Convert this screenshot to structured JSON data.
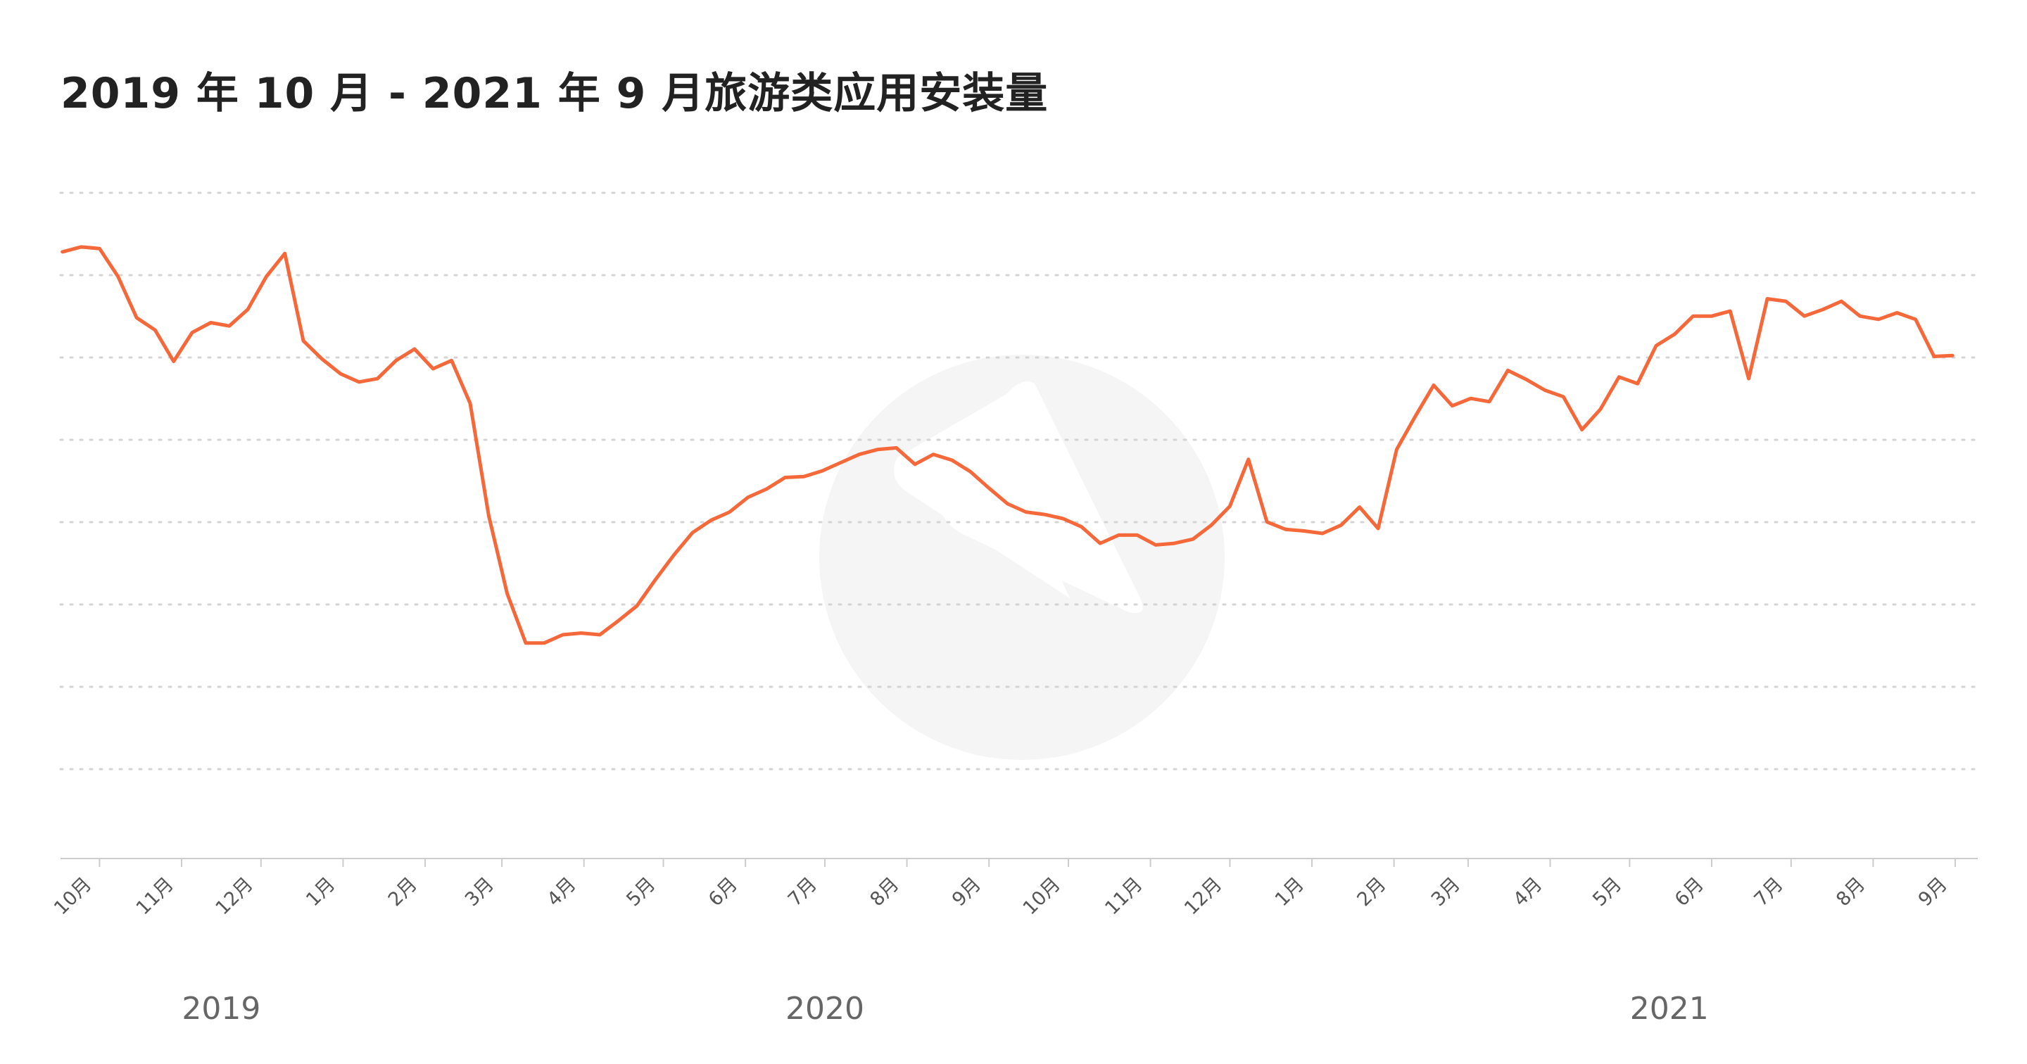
{
  "chart_data": {
    "type": "line",
    "title": "2019 年 10 月 - 2021 年 9 月旅游类应用安装量",
    "xlabel": "",
    "ylabel": "",
    "ylim": [
      0,
      8
    ],
    "grid": true,
    "legend": "none",
    "x_ticks": [
      {
        "label": "10月",
        "date": "2019-10-01"
      },
      {
        "label": "11月",
        "date": "2019-11-01"
      },
      {
        "label": "12月",
        "date": "2019-12-01"
      },
      {
        "label": "1月",
        "date": "2020-01-01"
      },
      {
        "label": "2月",
        "date": "2020-02-01"
      },
      {
        "label": "3月",
        "date": "2020-03-01"
      },
      {
        "label": "4月",
        "date": "2020-04-01"
      },
      {
        "label": "5月",
        "date": "2020-05-01"
      },
      {
        "label": "6月",
        "date": "2020-06-01"
      },
      {
        "label": "7月",
        "date": "2020-07-01"
      },
      {
        "label": "8月",
        "date": "2020-08-01"
      },
      {
        "label": "9月",
        "date": "2020-09-01"
      },
      {
        "label": "10月",
        "date": "2020-10-01"
      },
      {
        "label": "11月",
        "date": "2020-11-01"
      },
      {
        "label": "12月",
        "date": "2020-12-01"
      },
      {
        "label": "1月",
        "date": "2021-01-01"
      },
      {
        "label": "2月",
        "date": "2021-02-01"
      },
      {
        "label": "3月",
        "date": "2021-03-01"
      },
      {
        "label": "4月",
        "date": "2021-04-01"
      },
      {
        "label": "5月",
        "date": "2021-05-01"
      },
      {
        "label": "6月",
        "date": "2021-06-01"
      },
      {
        "label": "7月",
        "date": "2021-07-01"
      },
      {
        "label": "8月",
        "date": "2021-08-01"
      },
      {
        "label": "9月",
        "date": "2021-09-01"
      }
    ],
    "year_labels": [
      {
        "label": "2019",
        "date": "2019-11-16"
      },
      {
        "label": "2020",
        "date": "2020-07-01"
      },
      {
        "label": "2021",
        "date": "2021-05-16"
      }
    ],
    "series": [
      {
        "name": "",
        "color": "#f4683a",
        "points": [
          [
            "2019-09-17",
            7.3
          ],
          [
            "2019-09-24",
            7.36
          ],
          [
            "2019-10-01",
            7.34
          ],
          [
            "2019-10-08",
            7.0
          ],
          [
            "2019-10-15",
            6.5
          ],
          [
            "2019-10-22",
            6.35
          ],
          [
            "2019-10-29",
            5.97
          ],
          [
            "2019-11-05",
            6.32
          ],
          [
            "2019-11-12",
            6.44
          ],
          [
            "2019-11-19",
            6.4
          ],
          [
            "2019-11-26",
            6.6
          ],
          [
            "2019-12-03",
            7.0
          ],
          [
            "2019-12-10",
            7.28
          ],
          [
            "2019-12-17",
            6.22
          ],
          [
            "2019-12-24",
            6.0
          ],
          [
            "2019-12-31",
            5.82
          ],
          [
            "2020-01-07",
            5.72
          ],
          [
            "2020-01-14",
            5.76
          ],
          [
            "2020-01-21",
            5.98
          ],
          [
            "2020-01-28",
            6.12
          ],
          [
            "2020-02-04",
            5.88
          ],
          [
            "2020-02-11",
            5.98
          ],
          [
            "2020-02-18",
            5.46
          ],
          [
            "2020-02-25",
            4.1
          ],
          [
            "2020-03-03",
            3.15
          ],
          [
            "2020-03-10",
            2.55
          ],
          [
            "2020-03-17",
            2.55
          ],
          [
            "2020-03-24",
            2.65
          ],
          [
            "2020-03-31",
            2.67
          ],
          [
            "2020-04-07",
            2.65
          ],
          [
            "2020-04-14",
            2.82
          ],
          [
            "2020-04-21",
            3.0
          ],
          [
            "2020-04-28",
            3.32
          ],
          [
            "2020-05-05",
            3.62
          ],
          [
            "2020-05-12",
            3.89
          ],
          [
            "2020-05-19",
            4.04
          ],
          [
            "2020-05-26",
            4.14
          ],
          [
            "2020-06-02",
            4.32
          ],
          [
            "2020-06-09",
            4.42
          ],
          [
            "2020-06-16",
            4.56
          ],
          [
            "2020-06-23",
            4.57
          ],
          [
            "2020-06-30",
            4.64
          ],
          [
            "2020-07-07",
            4.74
          ],
          [
            "2020-07-14",
            4.84
          ],
          [
            "2020-07-21",
            4.9
          ],
          [
            "2020-07-28",
            4.92
          ],
          [
            "2020-08-04",
            4.72
          ],
          [
            "2020-08-11",
            4.84
          ],
          [
            "2020-08-18",
            4.77
          ],
          [
            "2020-08-25",
            4.63
          ],
          [
            "2020-09-01",
            4.43
          ],
          [
            "2020-09-08",
            4.24
          ],
          [
            "2020-09-15",
            4.14
          ],
          [
            "2020-09-22",
            4.11
          ],
          [
            "2020-09-29",
            4.06
          ],
          [
            "2020-10-06",
            3.96
          ],
          [
            "2020-10-13",
            3.76
          ],
          [
            "2020-10-20",
            3.86
          ],
          [
            "2020-10-27",
            3.86
          ],
          [
            "2020-11-03",
            3.74
          ],
          [
            "2020-11-10",
            3.76
          ],
          [
            "2020-11-17",
            3.81
          ],
          [
            "2020-11-24",
            3.98
          ],
          [
            "2020-12-01",
            4.21
          ],
          [
            "2020-12-08",
            4.78
          ],
          [
            "2020-12-15",
            4.02
          ],
          [
            "2020-12-22",
            3.93
          ],
          [
            "2020-12-29",
            3.91
          ],
          [
            "2021-01-05",
            3.88
          ],
          [
            "2021-01-12",
            3.98
          ],
          [
            "2021-01-19",
            4.2
          ],
          [
            "2021-01-26",
            3.94
          ],
          [
            "2021-02-02",
            4.9
          ],
          [
            "2021-02-09",
            5.3
          ],
          [
            "2021-02-16",
            5.68
          ],
          [
            "2021-02-23",
            5.43
          ],
          [
            "2021-03-02",
            5.52
          ],
          [
            "2021-03-09",
            5.48
          ],
          [
            "2021-03-16",
            5.86
          ],
          [
            "2021-03-23",
            5.75
          ],
          [
            "2021-03-30",
            5.62
          ],
          [
            "2021-04-06",
            5.54
          ],
          [
            "2021-04-13",
            5.14
          ],
          [
            "2021-04-20",
            5.39
          ],
          [
            "2021-04-27",
            5.78
          ],
          [
            "2021-05-04",
            5.7
          ],
          [
            "2021-05-11",
            6.16
          ],
          [
            "2021-05-18",
            6.3
          ],
          [
            "2021-05-25",
            6.52
          ],
          [
            "2021-06-01",
            6.52
          ],
          [
            "2021-06-08",
            6.58
          ],
          [
            "2021-06-15",
            5.76
          ],
          [
            "2021-06-22",
            6.73
          ],
          [
            "2021-06-29",
            6.7
          ],
          [
            "2021-07-06",
            6.52
          ],
          [
            "2021-07-13",
            6.6
          ],
          [
            "2021-07-20",
            6.7
          ],
          [
            "2021-07-27",
            6.52
          ],
          [
            "2021-08-03",
            6.48
          ],
          [
            "2021-08-10",
            6.56
          ],
          [
            "2021-08-17",
            6.48
          ],
          [
            "2021-08-24",
            6.03
          ],
          [
            "2021-08-31",
            6.04
          ]
        ]
      }
    ]
  },
  "watermark": {
    "icon": "logo-icon",
    "color": "#f5f5f5"
  },
  "colors": {
    "grid": "#d4d4d4",
    "axis": "#cccccc",
    "tick_text": "#555555",
    "year_text": "#666666"
  }
}
